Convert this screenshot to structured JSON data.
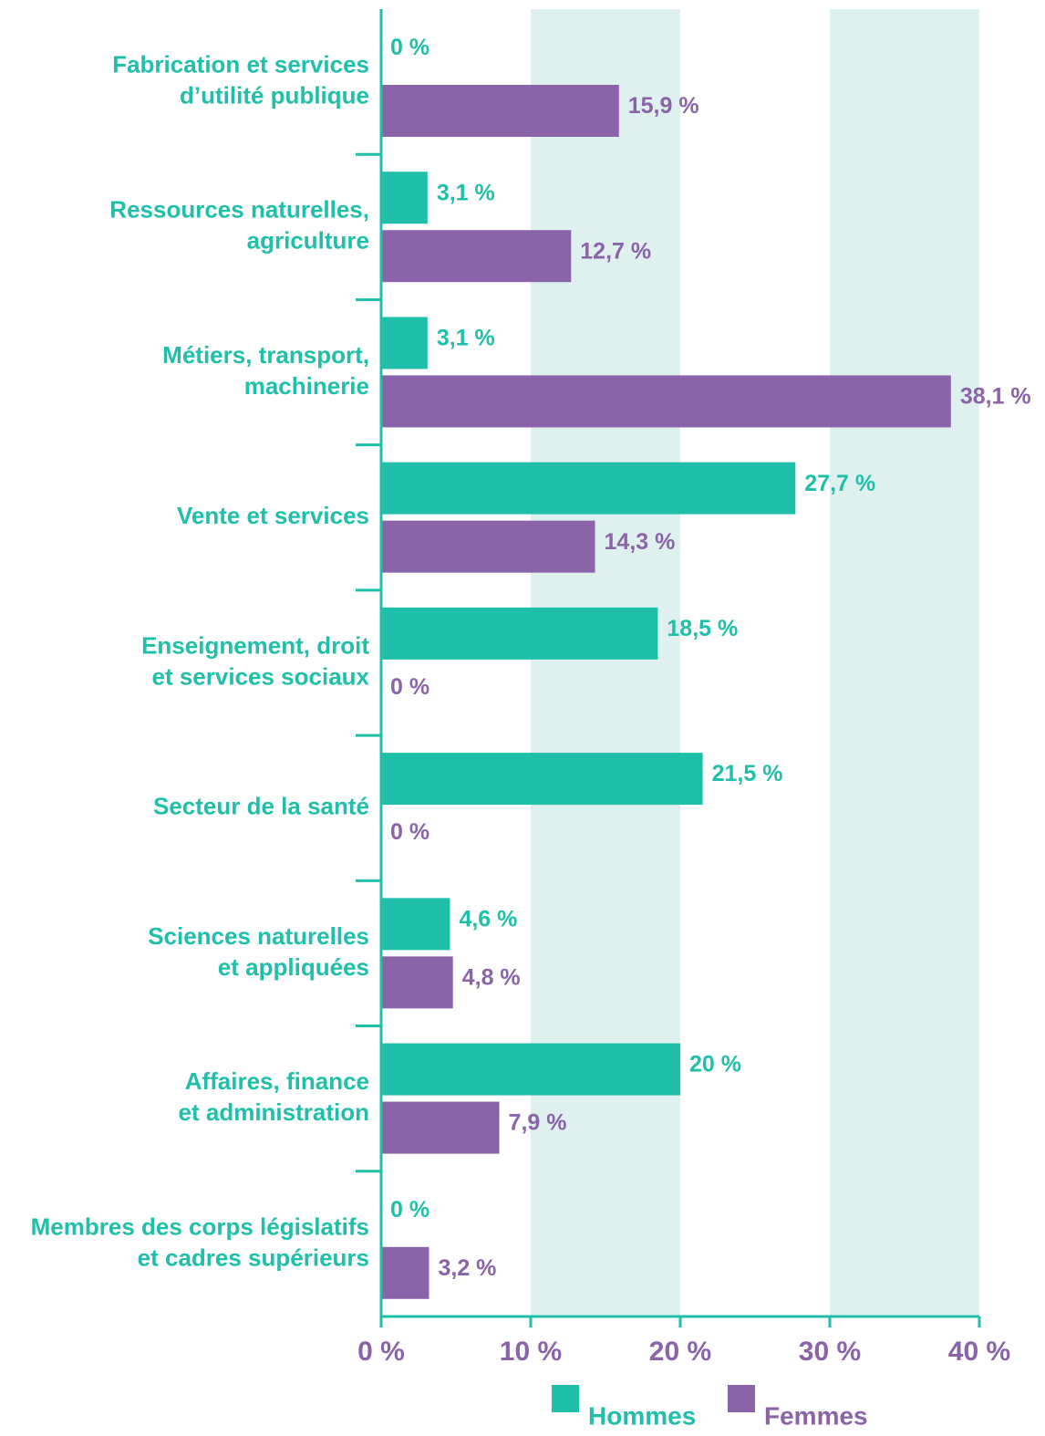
{
  "chart_data": {
    "type": "hbar",
    "categories": [
      [
        "Fabrication et services",
        "d’utilité publique"
      ],
      [
        "Ressources naturelles,",
        "agriculture"
      ],
      [
        "Métiers, transport,",
        "machinerie"
      ],
      [
        "Vente et services"
      ],
      [
        "Enseignement, droit",
        "et services sociaux"
      ],
      [
        "Secteur de la santé"
      ],
      [
        "Sciences naturelles",
        "et appliquées"
      ],
      [
        "Affaires, finance",
        "et administration"
      ],
      [
        "Membres des corps législatifs",
        "et cadres supérieurs"
      ]
    ],
    "series": [
      {
        "name": "Hommes",
        "color": "#20bfaa",
        "values": [
          0,
          3.1,
          3.1,
          27.7,
          18.5,
          21.5,
          4.6,
          20,
          0
        ],
        "value_labels": [
          "0 %",
          "3,1 %",
          "3,1 %",
          "27,7 %",
          "18,5 %",
          "21,5 %",
          "4,6 %",
          "20 %",
          "0 %"
        ]
      },
      {
        "name": "Femmes",
        "color": "#8b63a9",
        "values": [
          15.9,
          12.7,
          38.1,
          14.3,
          0,
          0,
          4.8,
          7.9,
          3.2
        ],
        "value_labels": [
          "15,9 %",
          "12,7 %",
          "38,1 %",
          "14,3 %",
          "0 %",
          "0 %",
          "4,8 %",
          "7,9 %",
          "3,2 %"
        ]
      }
    ],
    "xlim": [
      0,
      40
    ],
    "xticks": [
      {
        "value": 0,
        "label": "0 %"
      },
      {
        "value": 10,
        "label": "10 %"
      },
      {
        "value": 20,
        "label": "20 %"
      },
      {
        "value": 30,
        "label": "30 %"
      },
      {
        "value": 40,
        "label": "40 %"
      }
    ],
    "band_color": "#dff1ef",
    "legend": "bottom"
  }
}
